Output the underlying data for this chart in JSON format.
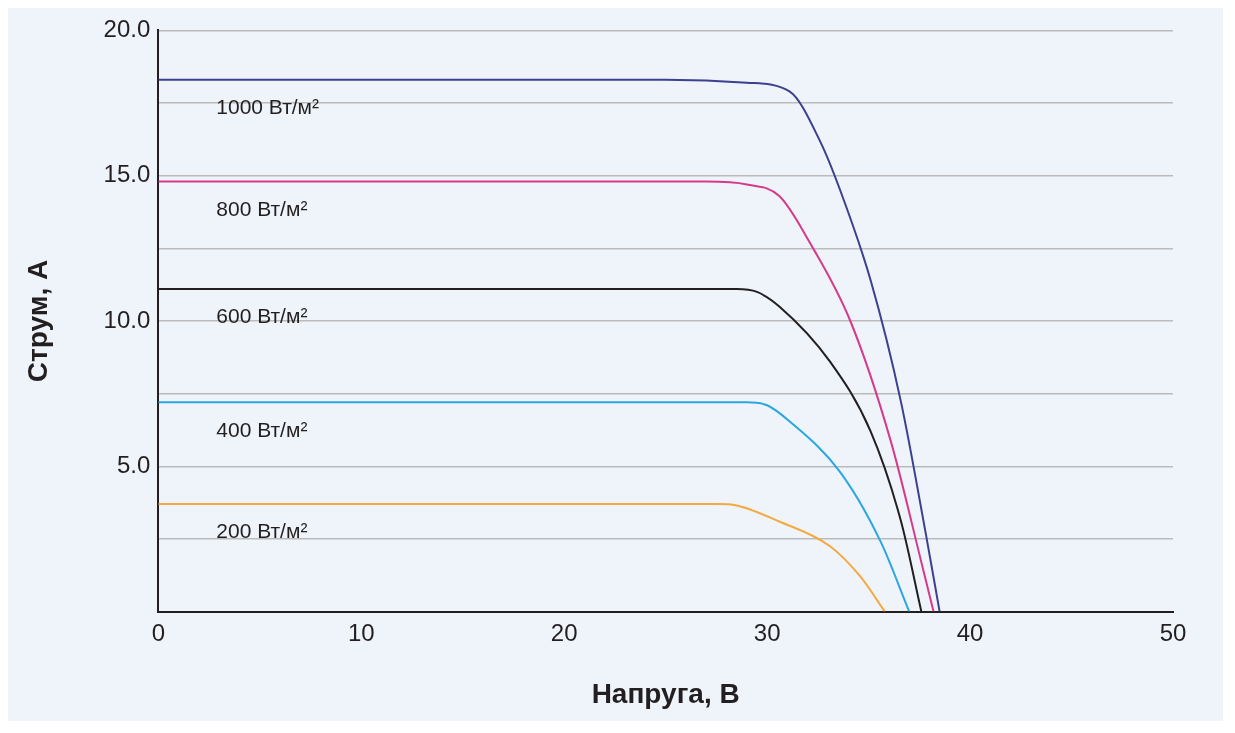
{
  "chart_data": {
    "type": "line",
    "xlabel": "Напруга, В",
    "ylabel": "Струм, А",
    "xlim": [
      0,
      50
    ],
    "ylim": [
      0,
      20
    ],
    "xticks": [
      0,
      10,
      20,
      30,
      40,
      50
    ],
    "yticks": [
      {
        "value": 2.5,
        "label": null
      },
      {
        "value": 5,
        "label": "5.0"
      },
      {
        "value": 7.5,
        "label": null
      },
      {
        "value": 10,
        "label": "10.0"
      },
      {
        "value": 12.5,
        "label": null
      },
      {
        "value": 15,
        "label": "15.0"
      },
      {
        "value": 17.5,
        "label": null
      },
      {
        "value": 20,
        "label": "20.0"
      }
    ],
    "grid": "y",
    "legend": false,
    "marker": "none",
    "line_style": "solid",
    "series": [
      {
        "name": "1000 Вт/м²",
        "color": "#3d3f8f",
        "x": [
          0,
          25,
          29,
          31.1,
          32.6,
          33.6,
          35.1,
          36.6,
          37.8,
          38.5
        ],
        "values": [
          18.3,
          18.3,
          18.2,
          17.9,
          16.2,
          14.5,
          11.4,
          7.2,
          2.75,
          0
        ]
      },
      {
        "name": "800 Вт/м²",
        "color": "#d63a8a",
        "x": [
          0,
          27,
          29,
          30.6,
          32.1,
          34.1,
          36.1,
          37.6,
          38.2
        ],
        "values": [
          14.8,
          14.8,
          14.7,
          14.3,
          12.7,
          10,
          5.85,
          1.7,
          0
        ]
      },
      {
        "name": "600 Вт/м²",
        "color": "#231f20",
        "x": [
          0,
          28.5,
          29.5,
          30.6,
          33.1,
          35.1,
          36.6,
          37.6
        ],
        "values": [
          11.1,
          11.1,
          11,
          10.5,
          8.6,
          6.2,
          3.1,
          0
        ]
      },
      {
        "name": "400 Вт/м²",
        "color": "#2aa6e0",
        "x": [
          0,
          29,
          30,
          31.1,
          33.6,
          35.6,
          37
        ],
        "values": [
          7.2,
          7.2,
          7.1,
          6.55,
          4.8,
          2.4,
          0
        ]
      },
      {
        "name": "200 Вт/м²",
        "color": "#f5a941",
        "x": [
          0,
          27.5,
          28.5,
          30.6,
          33.1,
          34.6,
          35.8
        ],
        "values": [
          3.7,
          3.7,
          3.65,
          3.1,
          2.25,
          1.2,
          0
        ]
      }
    ]
  }
}
